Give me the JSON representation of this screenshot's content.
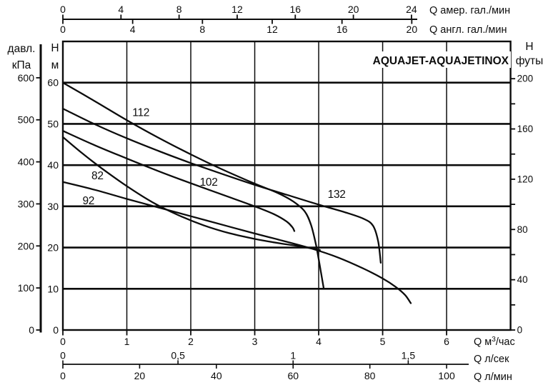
{
  "labels": {
    "title": "AQUAJET-AQUAJETINOX",
    "pressure_axis_line1": "давл.",
    "pressure_axis_line2": "кПа",
    "head_axis_line1": "H",
    "head_axis_line2": "м",
    "right_axis_line1": "H",
    "right_axis_line2": "футы",
    "us_gpm_axis": "Q  амер. гал./мин",
    "uk_gpm_axis": "Q  англ. гал./мин",
    "m3h_axis_p1": "Q  м",
    "m3h_axis_sup": "3",
    "m3h_axis_p2": "/час",
    "ls_axis": "Q  л/сек",
    "lmin_axis": "Q  л/мин"
  },
  "chart_data": {
    "type": "line",
    "title": "AQUAJET-AQUAJETINOX",
    "grid": true,
    "x_primary_unit": "м3/час",
    "y_primary_unit": "м",
    "x_range_m3h": [
      0,
      7
    ],
    "y_range_m": [
      0,
      70
    ],
    "grid_x_m3h": [
      1,
      2,
      3,
      4,
      5,
      6
    ],
    "grid_y_m": [
      10,
      20,
      30,
      40,
      50,
      60
    ],
    "axes": {
      "pressure_kpa": {
        "ticks": [
          600,
          500,
          400,
          300,
          200,
          100,
          0
        ]
      },
      "head_m": {
        "ticks": [
          60,
          50,
          40,
          30,
          20,
          10,
          0
        ]
      },
      "feet": {
        "ticks": [
          0,
          20,
          40,
          60,
          80,
          100,
          120,
          140,
          160,
          180,
          200
        ],
        "labeled": [
          0,
          40,
          80,
          120,
          160,
          200
        ]
      },
      "us_gpm": {
        "ticks": [
          0,
          4,
          8,
          12,
          16,
          20,
          24
        ]
      },
      "uk_gpm": {
        "ticks": [
          0,
          4,
          8,
          12,
          16,
          20
        ]
      },
      "m3h": {
        "ticks": [
          0,
          1,
          2,
          3,
          4,
          5,
          6
        ]
      },
      "ls": {
        "tick_values": [
          0,
          0.5,
          1,
          1.5
        ],
        "tick_labels": [
          "0",
          "0,5",
          "1",
          "1,5"
        ]
      },
      "lmin": {
        "ticks": [
          0,
          20,
          40,
          60,
          80,
          100
        ]
      }
    },
    "series": [
      {
        "label": "112",
        "label_at": [
          1.22,
          52.8
        ],
        "points": [
          [
            0,
            60
          ],
          [
            0.5,
            55.5
          ],
          [
            1,
            50.9
          ],
          [
            1.5,
            46.6
          ],
          [
            2,
            42.6
          ],
          [
            2.5,
            38.9
          ],
          [
            3,
            35.5
          ],
          [
            3.35,
            33.3
          ],
          [
            3.6,
            31.2
          ],
          [
            3.78,
            28.8
          ],
          [
            3.88,
            25.5
          ],
          [
            3.96,
            20.5
          ],
          [
            4.03,
            14.5
          ],
          [
            4.08,
            10
          ]
        ]
      },
      {
        "label": "132",
        "label_at": [
          4.28,
          32.9
        ],
        "points": [
          [
            0,
            53.7
          ],
          [
            0.5,
            49.9
          ],
          [
            1,
            46.5
          ],
          [
            1.5,
            43.4
          ],
          [
            2,
            40.5
          ],
          [
            2.5,
            37.8
          ],
          [
            3,
            35.2
          ],
          [
            3.5,
            32.8
          ],
          [
            4,
            30.4
          ],
          [
            4.4,
            28.6
          ],
          [
            4.7,
            27
          ],
          [
            4.85,
            25.3
          ],
          [
            4.93,
            21.5
          ],
          [
            4.97,
            16.3
          ]
        ]
      },
      {
        "label": "102",
        "label_at": [
          2.28,
          35.9
        ],
        "points": [
          [
            0,
            48.3
          ],
          [
            0.5,
            44.8
          ],
          [
            1,
            41.6
          ],
          [
            1.5,
            38.5
          ],
          [
            2,
            35.6
          ],
          [
            2.5,
            32.8
          ],
          [
            3,
            30
          ],
          [
            3.3,
            28.1
          ],
          [
            3.5,
            26.3
          ],
          [
            3.59,
            24.9
          ],
          [
            3.62,
            24
          ]
        ]
      },
      {
        "label": "82",
        "label_at": [
          0.54,
          37.4
        ],
        "points": [
          [
            0,
            46.8
          ],
          [
            0.3,
            42.9
          ],
          [
            0.6,
            39.3
          ],
          [
            1,
            34.9
          ],
          [
            1.4,
            31
          ],
          [
            1.8,
            27.9
          ],
          [
            2.2,
            25.4
          ],
          [
            2.6,
            23.5
          ],
          [
            3,
            22.1
          ],
          [
            3.4,
            21
          ],
          [
            3.7,
            20.3
          ],
          [
            4.02,
            19.4
          ]
        ]
      },
      {
        "label": "92",
        "label_at": [
          0.4,
          31.4
        ],
        "points": [
          [
            0,
            35.9
          ],
          [
            0.5,
            34
          ],
          [
            1,
            31.8
          ],
          [
            1.5,
            29.7
          ],
          [
            2,
            27.6
          ],
          [
            2.5,
            25.5
          ],
          [
            3,
            23.4
          ],
          [
            3.4,
            21.8
          ],
          [
            3.9,
            19.7
          ],
          [
            4.3,
            17.6
          ],
          [
            4.7,
            14.9
          ],
          [
            5,
            12.5
          ],
          [
            5.2,
            10.5
          ],
          [
            5.35,
            8.5
          ],
          [
            5.44,
            6.5
          ]
        ]
      }
    ]
  }
}
